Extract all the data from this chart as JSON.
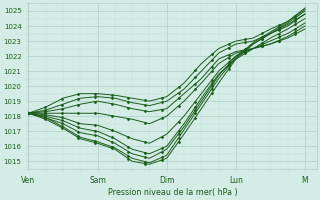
{
  "xlabel": "Pression niveau de la mer( hPa )",
  "ylim": [
    1014.5,
    1025.5
  ],
  "yticks": [
    1015,
    1016,
    1017,
    1018,
    1019,
    1020,
    1021,
    1022,
    1023,
    1024,
    1025
  ],
  "xtick_labels": [
    "Ven",
    "Sam",
    "Dim",
    "Lun",
    "M"
  ],
  "xtick_positions": [
    0,
    24,
    48,
    72,
    96
  ],
  "xlim": [
    0,
    100
  ],
  "bg_color": "#d4ece6",
  "grid_major_color": "#aecec8",
  "grid_minor_color": "#c4deda",
  "line_color": "#1a5c1a",
  "line_width": 0.7,
  "marker_size": 1.5,
  "lines": [
    {
      "pts": [
        [
          0,
          1018.2
        ],
        [
          6,
          1017.8
        ],
        [
          12,
          1017.2
        ],
        [
          18,
          1016.5
        ],
        [
          24,
          1016.2
        ],
        [
          30,
          1015.8
        ],
        [
          36,
          1015.0
        ],
        [
          42,
          1014.8
        ],
        [
          48,
          1015.2
        ],
        [
          54,
          1016.8
        ],
        [
          60,
          1018.5
        ],
        [
          66,
          1020.2
        ],
        [
          72,
          1021.8
        ],
        [
          78,
          1022.8
        ],
        [
          84,
          1023.5
        ],
        [
          90,
          1024.2
        ],
        [
          96,
          1025.0
        ]
      ]
    },
    {
      "pts": [
        [
          0,
          1018.2
        ],
        [
          6,
          1017.9
        ],
        [
          12,
          1017.3
        ],
        [
          18,
          1016.6
        ],
        [
          24,
          1016.3
        ],
        [
          30,
          1015.9
        ],
        [
          36,
          1015.2
        ],
        [
          42,
          1014.9
        ],
        [
          48,
          1015.4
        ],
        [
          54,
          1017.1
        ],
        [
          60,
          1018.8
        ],
        [
          66,
          1020.5
        ],
        [
          72,
          1021.9
        ],
        [
          78,
          1022.9
        ],
        [
          84,
          1023.6
        ],
        [
          90,
          1024.3
        ],
        [
          96,
          1025.1
        ]
      ]
    },
    {
      "pts": [
        [
          0,
          1018.2
        ],
        [
          6,
          1017.9
        ],
        [
          12,
          1017.5
        ],
        [
          18,
          1016.9
        ],
        [
          24,
          1016.7
        ],
        [
          30,
          1016.2
        ],
        [
          36,
          1015.5
        ],
        [
          42,
          1015.2
        ],
        [
          48,
          1015.8
        ],
        [
          54,
          1017.3
        ],
        [
          60,
          1019.0
        ],
        [
          66,
          1020.7
        ],
        [
          72,
          1022.0
        ],
        [
          78,
          1022.8
        ],
        [
          84,
          1023.5
        ],
        [
          90,
          1024.1
        ],
        [
          96,
          1024.8
        ]
      ]
    },
    {
      "pts": [
        [
          0,
          1018.2
        ],
        [
          6,
          1018.0
        ],
        [
          12,
          1017.7
        ],
        [
          18,
          1017.2
        ],
        [
          24,
          1017.0
        ],
        [
          30,
          1016.5
        ],
        [
          36,
          1015.8
        ],
        [
          42,
          1015.5
        ],
        [
          48,
          1016.0
        ],
        [
          54,
          1017.5
        ],
        [
          60,
          1019.2
        ],
        [
          66,
          1020.8
        ],
        [
          72,
          1021.8
        ],
        [
          78,
          1022.5
        ],
        [
          84,
          1023.2
        ],
        [
          90,
          1023.8
        ],
        [
          96,
          1024.5
        ]
      ]
    },
    {
      "pts": [
        [
          0,
          1018.2
        ],
        [
          6,
          1018.1
        ],
        [
          12,
          1017.9
        ],
        [
          18,
          1017.5
        ],
        [
          24,
          1017.4
        ],
        [
          30,
          1017.0
        ],
        [
          36,
          1016.5
        ],
        [
          42,
          1016.2
        ],
        [
          48,
          1016.8
        ],
        [
          54,
          1018.0
        ],
        [
          60,
          1019.5
        ],
        [
          66,
          1021.0
        ],
        [
          72,
          1022.0
        ],
        [
          78,
          1022.5
        ],
        [
          84,
          1023.0
        ],
        [
          90,
          1023.5
        ],
        [
          96,
          1024.2
        ]
      ]
    },
    {
      "pts": [
        [
          0,
          1018.2
        ],
        [
          6,
          1018.2
        ],
        [
          12,
          1018.2
        ],
        [
          18,
          1018.2
        ],
        [
          24,
          1018.2
        ],
        [
          30,
          1018.0
        ],
        [
          36,
          1017.8
        ],
        [
          42,
          1017.5
        ],
        [
          48,
          1018.0
        ],
        [
          54,
          1019.0
        ],
        [
          60,
          1020.2
        ],
        [
          66,
          1021.5
        ],
        [
          72,
          1022.2
        ],
        [
          78,
          1022.5
        ],
        [
          84,
          1022.8
        ],
        [
          90,
          1023.2
        ],
        [
          96,
          1023.8
        ]
      ]
    },
    {
      "pts": [
        [
          0,
          1018.2
        ],
        [
          6,
          1018.3
        ],
        [
          12,
          1018.5
        ],
        [
          18,
          1018.8
        ],
        [
          24,
          1019.0
        ],
        [
          30,
          1018.8
        ],
        [
          36,
          1018.5
        ],
        [
          42,
          1018.3
        ],
        [
          48,
          1018.5
        ],
        [
          54,
          1019.5
        ],
        [
          60,
          1020.5
        ],
        [
          66,
          1021.8
        ],
        [
          72,
          1022.3
        ],
        [
          78,
          1022.5
        ],
        [
          84,
          1022.8
        ],
        [
          90,
          1023.3
        ],
        [
          96,
          1024.0
        ]
      ]
    },
    {
      "pts": [
        [
          0,
          1018.2
        ],
        [
          6,
          1018.4
        ],
        [
          12,
          1018.8
        ],
        [
          18,
          1019.2
        ],
        [
          24,
          1019.3
        ],
        [
          30,
          1019.2
        ],
        [
          36,
          1018.9
        ],
        [
          42,
          1018.7
        ],
        [
          48,
          1019.0
        ],
        [
          54,
          1019.8
        ],
        [
          60,
          1021.0
        ],
        [
          66,
          1022.2
        ],
        [
          72,
          1022.8
        ],
        [
          78,
          1023.0
        ],
        [
          84,
          1023.5
        ],
        [
          90,
          1024.0
        ],
        [
          96,
          1024.8
        ]
      ]
    },
    {
      "pts": [
        [
          0,
          1018.2
        ],
        [
          6,
          1018.6
        ],
        [
          12,
          1019.2
        ],
        [
          18,
          1019.5
        ],
        [
          24,
          1019.5
        ],
        [
          30,
          1019.4
        ],
        [
          36,
          1019.2
        ],
        [
          42,
          1019.0
        ],
        [
          48,
          1019.3
        ],
        [
          54,
          1020.2
        ],
        [
          60,
          1021.5
        ],
        [
          66,
          1022.5
        ],
        [
          72,
          1023.0
        ],
        [
          78,
          1023.2
        ],
        [
          84,
          1023.8
        ],
        [
          90,
          1024.3
        ],
        [
          96,
          1025.2
        ]
      ]
    }
  ]
}
